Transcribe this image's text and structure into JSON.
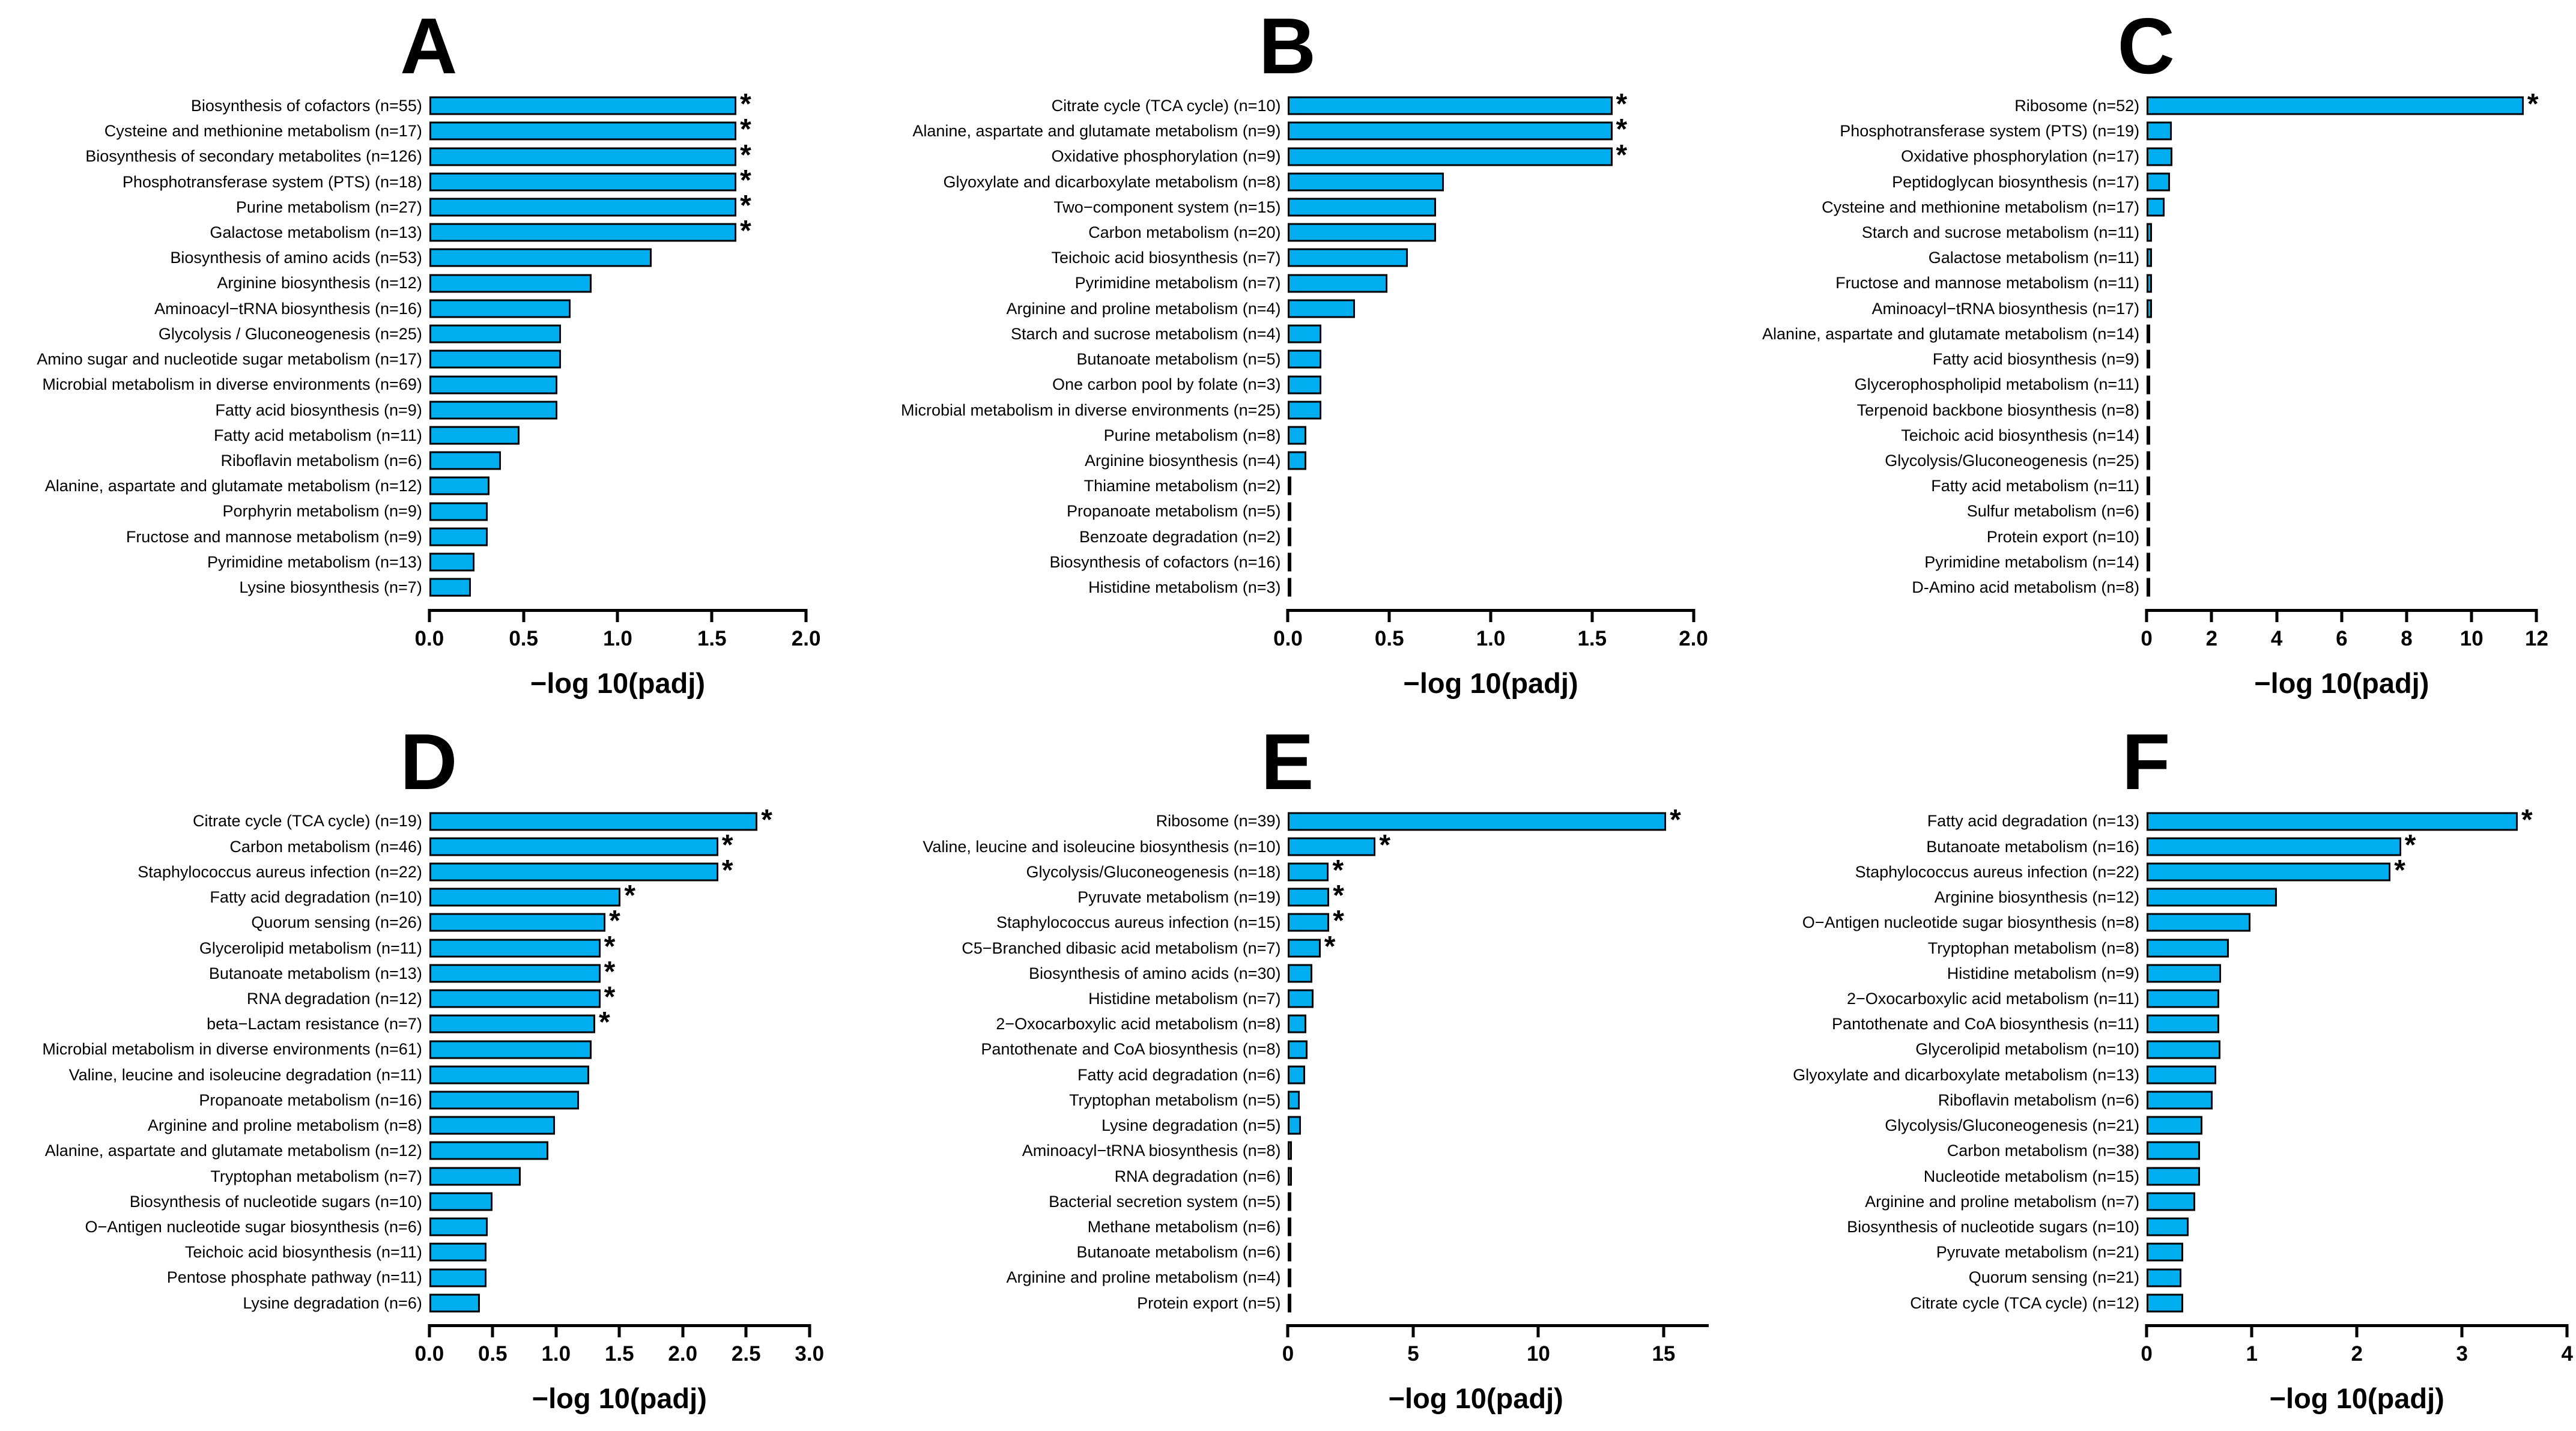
{
  "styles": {
    "bar_fill": "#00AEEF",
    "bar_border": "#000000",
    "background": "#FFFFFF",
    "text_color": "#000000",
    "significance_marker": "*"
  },
  "chart_data": [
    {
      "panel": "A",
      "type": "bar",
      "orientation": "horizontal",
      "xlabel": "−log 10(padj)",
      "xtick_labels": [
        "0.0",
        "0.5",
        "1.0",
        "1.5",
        "2.0"
      ],
      "xtick_values": [
        0,
        0.5,
        1.0,
        1.5,
        2.0
      ],
      "axis_end_value": 2.0,
      "xmax_display": 2.26,
      "categories": [
        "Biosynthesis of cofactors (n=55)",
        "Cysteine and methionine metabolism (n=17)",
        "Biosynthesis of secondary metabolites (n=126)",
        "Phosphotransferase system (PTS) (n=18)",
        "Purine metabolism (n=27)",
        "Galactose metabolism (n=13)",
        "Biosynthesis of amino acids (n=53)",
        "Arginine biosynthesis (n=12)",
        "Aminoacyl−tRNA biosynthesis (n=16)",
        "Glycolysis / Gluconeogenesis (n=25)",
        "Amino sugar and nucleotide sugar metabolism (n=17)",
        "Microbial metabolism in diverse environments (n=69)",
        "Fatty acid biosynthesis (n=9)",
        "Fatty acid metabolism (n=11)",
        "Riboflavin metabolism (n=6)",
        "Alanine, aspartate and glutamate metabolism (n=12)",
        "Porphyrin metabolism (n=9)",
        "Fructose and mannose metabolism (n=9)",
        "Pyrimidine metabolism (n=13)",
        "Lysine biosynthesis (n=7)"
      ],
      "values": [
        1.63,
        1.63,
        1.63,
        1.63,
        1.63,
        1.63,
        1.18,
        0.86,
        0.75,
        0.7,
        0.7,
        0.68,
        0.68,
        0.48,
        0.38,
        0.32,
        0.31,
        0.31,
        0.24,
        0.22
      ],
      "starred": [
        0,
        1,
        2,
        3,
        4,
        5
      ]
    },
    {
      "panel": "B",
      "type": "bar",
      "orientation": "horizontal",
      "xlabel": "−log 10(padj)",
      "xtick_labels": [
        "0.0",
        "0.5",
        "1.0",
        "1.5",
        "2.0"
      ],
      "xtick_values": [
        0,
        0.5,
        1.0,
        1.5,
        2.0
      ],
      "axis_end_value": 2.0,
      "xmax_display": 2.1,
      "categories": [
        "Citrate cycle (TCA cycle) (n=10)",
        "Alanine, aspartate and glutamate metabolism (n=9)",
        "Oxidative phosphorylation (n=9)",
        "Glyoxylate and dicarboxylate metabolism (n=8)",
        "Two−component system (n=15)",
        "Carbon metabolism (n=20)",
        "Teichoic acid biosynthesis (n=7)",
        "Pyrimidine metabolism (n=7)",
        "Arginine and proline metabolism (n=4)",
        "Starch and sucrose metabolism (n=4)",
        "Butanoate metabolism (n=5)",
        "One carbon pool by folate (n=3)",
        "Microbial metabolism in diverse environments (n=25)",
        "Purine metabolism (n=8)",
        "Arginine biosynthesis (n=4)",
        "Thiamine metabolism (n=2)",
        "Propanoate metabolism (n=5)",
        "Benzoate degradation (n=2)",
        "Biosynthesis of cofactors (n=16)",
        "Histidine metabolism (n=3)"
      ],
      "values": [
        1.6,
        1.6,
        1.6,
        0.77,
        0.73,
        0.73,
        0.59,
        0.49,
        0.33,
        0.165,
        0.165,
        0.165,
        0.165,
        0.09,
        0.09,
        0.015,
        0.015,
        0.015,
        0.015,
        0.015
      ],
      "starred": [
        0,
        1,
        2
      ]
    },
    {
      "panel": "C",
      "type": "bar",
      "orientation": "horizontal",
      "xlabel": "−log 10(padj)",
      "xtick_labels": [
        "0",
        "2",
        "4",
        "6",
        "8",
        "10",
        "12"
      ],
      "xtick_values": [
        0,
        2,
        4,
        6,
        8,
        10,
        12
      ],
      "axis_end_value": 12,
      "xmax_display": 13.1,
      "categories": [
        "Ribosome (n=52)",
        "Phosphotransferase system (PTS) (n=19)",
        "Oxidative phosphorylation (n=17)",
        "Peptidoglycan biosynthesis (n=17)",
        "Cysteine and methionine metabolism (n=17)",
        "Starch and sucrose metabolism (n=11)",
        "Galactose metabolism (n=11)",
        "Fructose and mannose metabolism (n=11)",
        "Aminoacyl−tRNA biosynthesis (n=17)",
        "Alanine, aspartate and glutamate metabolism (n=14)",
        "Fatty acid biosynthesis (n=9)",
        "Glycerophospholipid metabolism (n=11)",
        "Terpenoid backbone biosynthesis (n=8)",
        "Teichoic acid biosynthesis (n=14)",
        "Glycolysis/Gluconeogenesis (n=25)",
        "Fatty acid metabolism (n=11)",
        "Sulfur metabolism (n=6)",
        "Protein export (n=10)",
        "Pyrimidine metabolism (n=14)",
        "D-Amino acid metabolism (n=8)"
      ],
      "values": [
        11.6,
        0.78,
        0.8,
        0.72,
        0.56,
        0.16,
        0.16,
        0.17,
        0.17,
        0.11,
        0.1,
        0.05,
        0.05,
        0.05,
        0.03,
        0.03,
        0.03,
        0.03,
        0.03,
        0.03
      ],
      "starred": [
        0
      ]
    },
    {
      "panel": "D",
      "type": "bar",
      "orientation": "horizontal",
      "xlabel": "−log 10(padj)",
      "xtick_labels": [
        "0.0",
        "0.5",
        "1.0",
        "1.5",
        "2.0",
        "2.5",
        "3.0"
      ],
      "xtick_values": [
        0,
        0.5,
        1.0,
        1.5,
        2.0,
        2.5,
        3.0
      ],
      "axis_end_value": 3.0,
      "xmax_display": 3.36,
      "categories": [
        "Citrate cycle (TCA cycle) (n=19)",
        "Carbon metabolism (n=46)",
        "Staphylococcus aureus infection (n=22)",
        "Fatty acid degradation (n=10)",
        "Quorum sensing (n=26)",
        "Glycerolipid metabolism (n=11)",
        "Butanoate metabolism (n=13)",
        "RNA degradation (n=12)",
        "beta−Lactam resistance (n=7)",
        "Microbial metabolism in diverse environments (n=61)",
        "Valine, leucine and isoleucine degradation (n=11)",
        "Propanoate metabolism (n=16)",
        "Arginine and proline metabolism (n=8)",
        "Alanine, aspartate and glutamate metabolism (n=12)",
        "Tryptophan metabolism (n=7)",
        "Biosynthesis of nucleotide sugars (n=10)",
        "O−Antigen nucleotide sugar biosynthesis (n=6)",
        "Teichoic acid biosynthesis (n=11)",
        "Pentose phosphate pathway (n=11)",
        "Lysine degradation (n=6)"
      ],
      "values": [
        2.59,
        2.28,
        2.28,
        1.51,
        1.39,
        1.35,
        1.35,
        1.35,
        1.31,
        1.28,
        1.26,
        1.18,
        0.99,
        0.94,
        0.72,
        0.5,
        0.46,
        0.45,
        0.45,
        0.4
      ],
      "starred": [
        0,
        1,
        2,
        3,
        4,
        5,
        6,
        7,
        8
      ]
    },
    {
      "panel": "E",
      "type": "bar",
      "orientation": "horizontal",
      "xlabel": "−log 10(padj)",
      "xtick_labels": [
        "0",
        "5",
        "10",
        "15"
      ],
      "xtick_values": [
        0,
        5,
        10,
        15
      ],
      "axis_end_value": 16.8,
      "xmax_display": 17,
      "categories": [
        "Ribosome (n=39)",
        "Valine, leucine and isoleucine biosynthesis (n=10)",
        "Glycolysis/Gluconeogenesis (n=18)",
        "Pyruvate metabolism (n=19)",
        "Staphylococcus aureus infection (n=15)",
        "C5−Branched dibasic acid metabolism (n=7)",
        "Biosynthesis of amino acids (n=30)",
        "Histidine metabolism (n=7)",
        "2−Oxocarboxylic acid metabolism (n=8)",
        "Pantothenate and CoA biosynthesis (n=8)",
        "Fatty acid degradation (n=6)",
        "Tryptophan metabolism (n=5)",
        "Lysine degradation (n=5)",
        "Aminoacyl−tRNA biosynthesis (n=8)",
        "RNA degradation (n=6)",
        "Bacterial secretion system (n=5)",
        "Methane metabolism (n=6)",
        "Butanoate metabolism (n=6)",
        "Arginine and proline metabolism (n=4)",
        "Protein export (n=5)"
      ],
      "values": [
        15.1,
        3.5,
        1.63,
        1.65,
        1.65,
        1.3,
        0.98,
        1.02,
        0.72,
        0.78,
        0.68,
        0.48,
        0.52,
        0.16,
        0.16,
        0.14,
        0.08,
        0.08,
        0.08,
        0.04
      ],
      "starred": [
        0,
        1,
        2,
        3,
        4,
        5
      ]
    },
    {
      "panel": "F",
      "type": "bar",
      "orientation": "horizontal",
      "xlabel": "−log 10(padj)",
      "xtick_labels": [
        "0",
        "1",
        "2",
        "3",
        "4"
      ],
      "xtick_values": [
        0,
        1,
        2,
        3,
        4
      ],
      "axis_end_value": 4,
      "xmax_display": 4.05,
      "categories": [
        "Fatty acid degradation (n=13)",
        "Butanoate metabolism (n=16)",
        "Staphylococcus aureus infection (n=22)",
        "Arginine biosynthesis (n=12)",
        "O−Antigen nucleotide sugar biosynthesis (n=8)",
        "Tryptophan metabolism (n=8)",
        "Histidine metabolism (n=9)",
        "2−Oxocarboxylic acid metabolism (n=11)",
        "Pantothenate and CoA biosynthesis (n=11)",
        "Glycerolipid metabolism (n=10)",
        "Glyoxylate and dicarboxylate metabolism (n=13)",
        "Riboflavin metabolism (n=6)",
        "Glycolysis/Gluconeogenesis (n=21)",
        "Carbon metabolism (n=38)",
        "Nucleotide metabolism (n=15)",
        "Arginine and proline metabolism (n=7)",
        "Biosynthesis of nucleotide sugars (n=10)",
        "Pyruvate metabolism (n=21)",
        "Quorum sensing (n=21)",
        "Citrate cycle (TCA cycle) (n=12)"
      ],
      "values": [
        3.53,
        2.42,
        2.32,
        1.24,
        0.99,
        0.78,
        0.71,
        0.69,
        0.69,
        0.7,
        0.66,
        0.63,
        0.53,
        0.51,
        0.51,
        0.46,
        0.4,
        0.35,
        0.33,
        0.35
      ],
      "starred": [
        0,
        1,
        2
      ]
    }
  ]
}
